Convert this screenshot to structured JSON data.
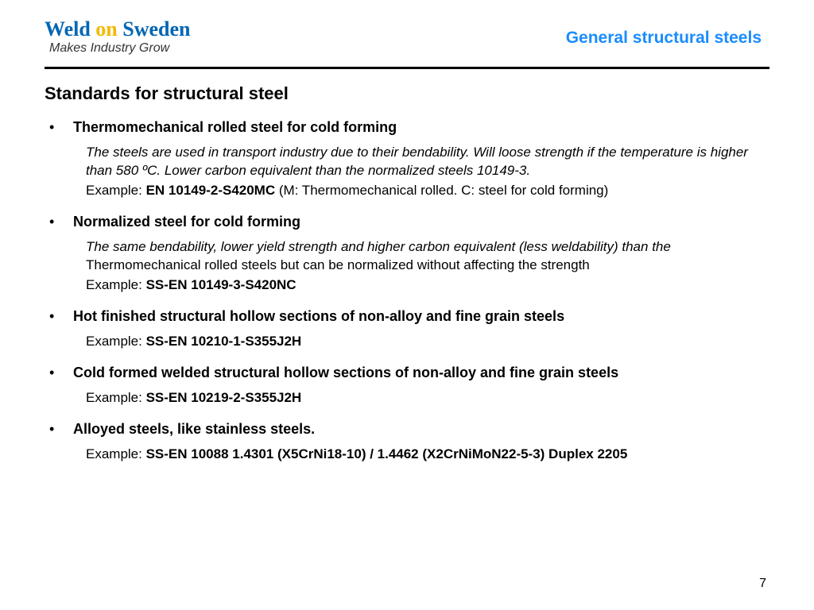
{
  "logo": {
    "weld": "Weld",
    "on": "on",
    "sweden": "Sweden",
    "tagline": "Makes Industry Grow"
  },
  "subject": "General structural steels",
  "title": "Standards for structural steel",
  "items": [
    {
      "heading": "Thermomechanical rolled steel for cold forming",
      "desc_italic": "The steels are used in transport industry due to their bendability. Will loose strength if the temperature is higher than 580 ºC. Lower carbon equivalent than the normalized  steels  10149-3.",
      "example_prefix": "Example: ",
      "example_bold": "EN 10149-2-S420MC",
      "example_suffix": " (M: Thermomechanical rolled. C: steel for cold forming)"
    },
    {
      "heading": "Normalized steel for cold forming",
      "desc_italic": "The same bendability, lower yield strength and higher carbon equivalent (less weldability) than the",
      "desc_plain": "Thermomechanical rolled steels but can be normalized without affecting the strength",
      "example_prefix": "Example: ",
      "example_bold": "SS-EN 10149-3-S420NC",
      "example_suffix": ""
    },
    {
      "heading": "Hot finished structural hollow sections of non-alloy and fine grain steels",
      "example_prefix": "Example: ",
      "example_bold": "SS-EN 10210-1-S355J2H",
      "example_suffix": ""
    },
    {
      "heading": "Cold formed welded structural hollow sections of non-alloy and fine grain steels",
      "example_prefix": "Example: ",
      "example_bold": "SS-EN 10219-2-S355J2H",
      "example_suffix": ""
    },
    {
      "heading": "Alloyed steels, like stainless steels.",
      "example_prefix": "Example: ",
      "example_bold": "SS-EN 10088 1.4301 (X5CrNi18-10) / 1.4462 (X2CrNiMoN22-5-3) Duplex 2205",
      "example_suffix": ""
    }
  ],
  "page_number": "7"
}
